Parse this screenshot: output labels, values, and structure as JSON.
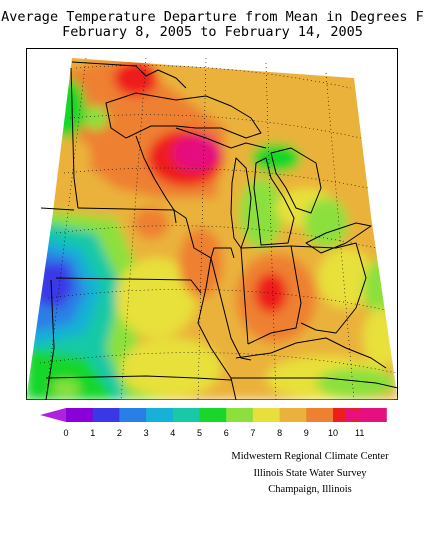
{
  "title": {
    "line1": "Average Temperature Departure from Mean in Degrees F",
    "line2": "February 8, 2005 to February 14, 2005"
  },
  "legend": {
    "ticks": [
      "0",
      "1",
      "2",
      "3",
      "4",
      "5",
      "6",
      "7",
      "8",
      "9",
      "10",
      "11"
    ],
    "colors": [
      "#8a00d9",
      "#3a38e6",
      "#2a7fe6",
      "#17b0d6",
      "#17c9a6",
      "#19d62c",
      "#8ce03c",
      "#e8e03a",
      "#eab23a",
      "#ee8030",
      "#ee1e1e",
      "#e5107f"
    ],
    "low_arrow_color": "#b020e0",
    "high_arrow_color": "#e8107f"
  },
  "credits": {
    "line1": "Midwestern Regional Climate Center",
    "line2": "Illinois State Water Survey",
    "line3": "Champaign, Illinois"
  },
  "map": {
    "region": "Midwest United States",
    "background_color": "#ffffff",
    "border_color": "#000000"
  }
}
